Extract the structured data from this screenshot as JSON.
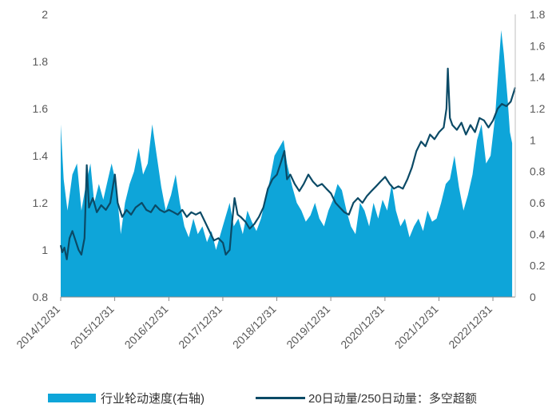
{
  "chart_data": {
    "type": "area+line",
    "title": "",
    "colors": {
      "area": "#0ea5d9",
      "line": "#0b4a66",
      "axis": "#8c8c8c",
      "text": "#595959"
    },
    "left_axis": {
      "ylim": [
        0.8,
        2.0
      ],
      "ticks": [
        "0.8",
        "1",
        "1.2",
        "1.4",
        "1.6",
        "1.8",
        "2"
      ]
    },
    "right_axis": {
      "ylim": [
        0,
        1.8
      ],
      "ticks": [
        "0",
        "0.2",
        "0.4",
        "0.6",
        "0.8",
        "1",
        "1.2",
        "1.4",
        "1.6",
        "1.8"
      ]
    },
    "x_range": [
      "2014-12-31",
      "2023-05-31"
    ],
    "x_tick_labels": [
      "2014/12/31",
      "2015/12/31",
      "2016/12/31",
      "2017/12/31",
      "2018/12/31",
      "2019/12/31",
      "2020/12/31",
      "2021/12/31",
      "2022/12/31"
    ],
    "legend_position": "bottom",
    "series": [
      {
        "name": "行业轮动速度(右轴)",
        "type": "area",
        "axis": "right",
        "points": [
          [
            "2014-12-31",
            1.1
          ],
          [
            "2015-01-20",
            0.75
          ],
          [
            "2015-02-15",
            0.55
          ],
          [
            "2015-03-20",
            0.78
          ],
          [
            "2015-04-20",
            0.85
          ],
          [
            "2015-05-20",
            0.55
          ],
          [
            "2015-06-20",
            0.72
          ],
          [
            "2015-07-20",
            0.85
          ],
          [
            "2015-08-15",
            0.6
          ],
          [
            "2015-09-15",
            0.72
          ],
          [
            "2015-10-15",
            0.62
          ],
          [
            "2015-11-15",
            0.75
          ],
          [
            "2015-12-10",
            0.85
          ],
          [
            "2016-01-10",
            0.72
          ],
          [
            "2016-02-10",
            0.4
          ],
          [
            "2016-03-10",
            0.6
          ],
          [
            "2016-04-10",
            0.72
          ],
          [
            "2016-05-10",
            0.8
          ],
          [
            "2016-06-10",
            0.95
          ],
          [
            "2016-07-10",
            0.78
          ],
          [
            "2016-08-10",
            0.85
          ],
          [
            "2016-09-10",
            1.1
          ],
          [
            "2016-10-10",
            0.9
          ],
          [
            "2016-11-10",
            0.7
          ],
          [
            "2016-12-10",
            0.55
          ],
          [
            "2017-01-15",
            0.65
          ],
          [
            "2017-02-15",
            0.78
          ],
          [
            "2017-03-15",
            0.6
          ],
          [
            "2017-04-15",
            0.45
          ],
          [
            "2017-05-15",
            0.38
          ],
          [
            "2017-06-15",
            0.5
          ],
          [
            "2017-07-15",
            0.4
          ],
          [
            "2017-08-15",
            0.45
          ],
          [
            "2017-09-15",
            0.35
          ],
          [
            "2017-10-15",
            0.42
          ],
          [
            "2017-11-15",
            0.3
          ],
          [
            "2017-12-15",
            0.4
          ],
          [
            "2018-01-15",
            0.5
          ],
          [
            "2018-02-15",
            0.6
          ],
          [
            "2018-03-15",
            0.45
          ],
          [
            "2018-04-15",
            0.5
          ],
          [
            "2018-05-15",
            0.4
          ],
          [
            "2018-06-15",
            0.55
          ],
          [
            "2018-07-15",
            0.48
          ],
          [
            "2018-08-15",
            0.42
          ],
          [
            "2018-09-15",
            0.5
          ],
          [
            "2018-10-15",
            0.62
          ],
          [
            "2018-11-15",
            0.75
          ],
          [
            "2018-12-15",
            0.9
          ],
          [
            "2019-01-15",
            0.95
          ],
          [
            "2019-02-15",
            1.0
          ],
          [
            "2019-03-10",
            0.85
          ],
          [
            "2019-04-15",
            0.7
          ],
          [
            "2019-05-15",
            0.6
          ],
          [
            "2019-06-15",
            0.55
          ],
          [
            "2019-07-15",
            0.48
          ],
          [
            "2019-08-15",
            0.52
          ],
          [
            "2019-09-15",
            0.6
          ],
          [
            "2019-10-15",
            0.5
          ],
          [
            "2019-11-15",
            0.45
          ],
          [
            "2019-12-15",
            0.55
          ],
          [
            "2020-01-15",
            0.62
          ],
          [
            "2020-02-15",
            0.72
          ],
          [
            "2020-03-15",
            0.68
          ],
          [
            "2020-04-15",
            0.55
          ],
          [
            "2020-05-15",
            0.45
          ],
          [
            "2020-06-15",
            0.4
          ],
          [
            "2020-07-15",
            0.6
          ],
          [
            "2020-08-15",
            0.55
          ],
          [
            "2020-09-15",
            0.45
          ],
          [
            "2020-10-15",
            0.6
          ],
          [
            "2020-11-15",
            0.5
          ],
          [
            "2020-12-15",
            0.62
          ],
          [
            "2021-01-15",
            0.55
          ],
          [
            "2021-02-15",
            0.72
          ],
          [
            "2021-03-15",
            0.55
          ],
          [
            "2021-04-15",
            0.45
          ],
          [
            "2021-05-15",
            0.5
          ],
          [
            "2021-06-15",
            0.38
          ],
          [
            "2021-07-15",
            0.45
          ],
          [
            "2021-08-15",
            0.5
          ],
          [
            "2021-09-15",
            0.42
          ],
          [
            "2021-10-15",
            0.55
          ],
          [
            "2021-11-15",
            0.48
          ],
          [
            "2021-12-15",
            0.5
          ],
          [
            "2022-01-15",
            0.6
          ],
          [
            "2022-02-15",
            0.72
          ],
          [
            "2022-03-15",
            0.75
          ],
          [
            "2022-04-15",
            0.9
          ],
          [
            "2022-05-15",
            0.7
          ],
          [
            "2022-06-15",
            0.55
          ],
          [
            "2022-07-15",
            0.65
          ],
          [
            "2022-08-15",
            0.78
          ],
          [
            "2022-09-15",
            1.0
          ],
          [
            "2022-10-15",
            1.1
          ],
          [
            "2022-11-15",
            0.85
          ],
          [
            "2022-12-15",
            0.9
          ],
          [
            "2023-01-15",
            1.15
          ],
          [
            "2023-02-10",
            1.5
          ],
          [
            "2023-02-25",
            1.7
          ],
          [
            "2023-03-15",
            1.55
          ],
          [
            "2023-04-10",
            1.25
          ],
          [
            "2023-04-25",
            1.05
          ],
          [
            "2023-05-10",
            0.98
          ]
        ]
      },
      {
        "name": "20日动量/250日动量：多空超额",
        "type": "line",
        "axis": "left",
        "points": [
          [
            "2014-12-31",
            1.02
          ],
          [
            "2015-01-10",
            0.99
          ],
          [
            "2015-01-25",
            1.01
          ],
          [
            "2015-02-10",
            0.96
          ],
          [
            "2015-03-01",
            1.05
          ],
          [
            "2015-03-20",
            1.08
          ],
          [
            "2015-04-10",
            1.04
          ],
          [
            "2015-05-01",
            1.0
          ],
          [
            "2015-05-20",
            0.98
          ],
          [
            "2015-06-10",
            1.05
          ],
          [
            "2015-06-25",
            1.36
          ],
          [
            "2015-07-10",
            1.18
          ],
          [
            "2015-08-05",
            1.22
          ],
          [
            "2015-09-01",
            1.16
          ],
          [
            "2015-10-01",
            1.19
          ],
          [
            "2015-11-01",
            1.17
          ],
          [
            "2015-12-01",
            1.2
          ],
          [
            "2016-01-01",
            1.32
          ],
          [
            "2016-01-20",
            1.2
          ],
          [
            "2016-02-20",
            1.14
          ],
          [
            "2016-03-20",
            1.17
          ],
          [
            "2016-04-20",
            1.15
          ],
          [
            "2016-05-20",
            1.18
          ],
          [
            "2016-07-01",
            1.2
          ],
          [
            "2016-08-01",
            1.17
          ],
          [
            "2016-09-01",
            1.16
          ],
          [
            "2016-10-01",
            1.19
          ],
          [
            "2016-11-01",
            1.17
          ],
          [
            "2016-12-01",
            1.16
          ],
          [
            "2017-01-01",
            1.17
          ],
          [
            "2017-02-01",
            1.16
          ],
          [
            "2017-03-01",
            1.15
          ],
          [
            "2017-04-01",
            1.17
          ],
          [
            "2017-05-01",
            1.14
          ],
          [
            "2017-06-01",
            1.16
          ],
          [
            "2017-07-01",
            1.15
          ],
          [
            "2017-08-01",
            1.16
          ],
          [
            "2017-09-01",
            1.12
          ],
          [
            "2017-10-01",
            1.08
          ],
          [
            "2017-11-01",
            1.04
          ],
          [
            "2017-12-01",
            1.05
          ],
          [
            "2018-01-01",
            1.03
          ],
          [
            "2018-01-20",
            0.98
          ],
          [
            "2018-02-15",
            1.0
          ],
          [
            "2018-03-01",
            1.1
          ],
          [
            "2018-03-20",
            1.22
          ],
          [
            "2018-04-10",
            1.15
          ],
          [
            "2018-05-01",
            1.14
          ],
          [
            "2018-06-01",
            1.12
          ],
          [
            "2018-07-01",
            1.09
          ],
          [
            "2018-08-01",
            1.11
          ],
          [
            "2018-09-01",
            1.14
          ],
          [
            "2018-10-01",
            1.18
          ],
          [
            "2018-11-01",
            1.26
          ],
          [
            "2018-12-01",
            1.3
          ],
          [
            "2019-01-01",
            1.32
          ],
          [
            "2019-02-01",
            1.38
          ],
          [
            "2019-02-20",
            1.42
          ],
          [
            "2019-03-10",
            1.3
          ],
          [
            "2019-04-01",
            1.32
          ],
          [
            "2019-05-01",
            1.28
          ],
          [
            "2019-06-01",
            1.25
          ],
          [
            "2019-07-01",
            1.28
          ],
          [
            "2019-08-01",
            1.32
          ],
          [
            "2019-09-01",
            1.29
          ],
          [
            "2019-10-01",
            1.27
          ],
          [
            "2019-11-01",
            1.28
          ],
          [
            "2019-12-01",
            1.26
          ],
          [
            "2020-01-01",
            1.24
          ],
          [
            "2020-02-01",
            1.2
          ],
          [
            "2020-03-01",
            1.18
          ],
          [
            "2020-04-01",
            1.16
          ],
          [
            "2020-05-01",
            1.15
          ],
          [
            "2020-06-01",
            1.2
          ],
          [
            "2020-07-01",
            1.22
          ],
          [
            "2020-08-01",
            1.2
          ],
          [
            "2020-09-01",
            1.23
          ],
          [
            "2020-10-01",
            1.25
          ],
          [
            "2020-11-01",
            1.27
          ],
          [
            "2020-12-01",
            1.29
          ],
          [
            "2021-01-01",
            1.31
          ],
          [
            "2021-02-01",
            1.28
          ],
          [
            "2021-03-01",
            1.26
          ],
          [
            "2021-04-01",
            1.27
          ],
          [
            "2021-05-01",
            1.26
          ],
          [
            "2021-06-01",
            1.3
          ],
          [
            "2021-07-01",
            1.35
          ],
          [
            "2021-08-01",
            1.42
          ],
          [
            "2021-09-01",
            1.46
          ],
          [
            "2021-10-01",
            1.44
          ],
          [
            "2021-11-01",
            1.49
          ],
          [
            "2021-12-01",
            1.47
          ],
          [
            "2022-01-01",
            1.5
          ],
          [
            "2022-02-01",
            1.52
          ],
          [
            "2022-02-20",
            1.6
          ],
          [
            "2022-03-01",
            1.77
          ],
          [
            "2022-03-15",
            1.56
          ],
          [
            "2022-04-01",
            1.53
          ],
          [
            "2022-05-01",
            1.51
          ],
          [
            "2022-06-01",
            1.54
          ],
          [
            "2022-07-01",
            1.49
          ],
          [
            "2022-08-01",
            1.53
          ],
          [
            "2022-09-01",
            1.5
          ],
          [
            "2022-10-01",
            1.56
          ],
          [
            "2022-11-01",
            1.55
          ],
          [
            "2022-12-01",
            1.52
          ],
          [
            "2023-01-01",
            1.55
          ],
          [
            "2023-02-01",
            1.6
          ],
          [
            "2023-03-01",
            1.62
          ],
          [
            "2023-04-01",
            1.61
          ],
          [
            "2023-05-01",
            1.63
          ],
          [
            "2023-05-31",
            1.69
          ]
        ]
      }
    ]
  }
}
